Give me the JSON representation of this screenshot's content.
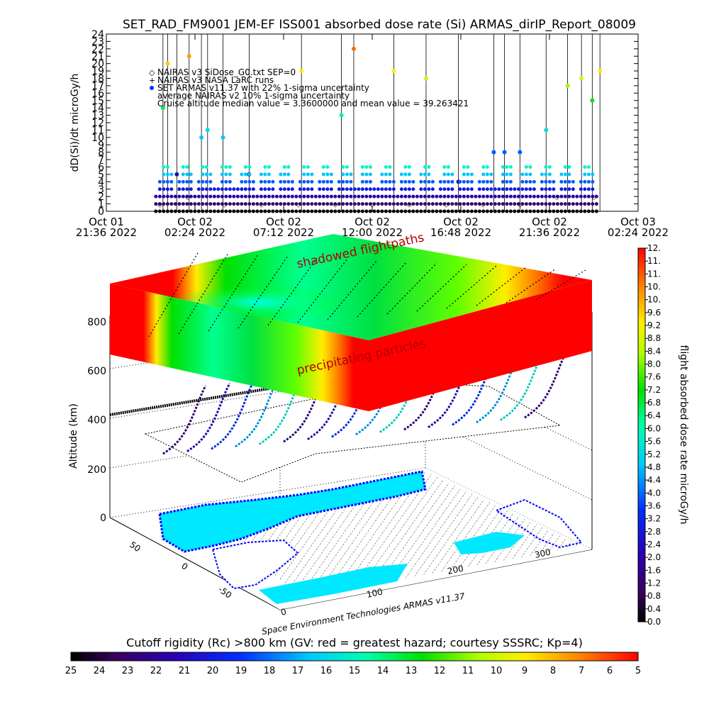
{
  "title": "SET_RAD_FM9001  JEM-EF ISS001 absorbed dose rate (Si) ARMAS_dirIP_Report_08009",
  "colors": {
    "background": "#ffffff",
    "ink": "#000000",
    "hazard_red": "#ff0000",
    "ocean": "#00ffff",
    "land": "#0000ff"
  },
  "top_plot": {
    "ylabel": "dD(Si)/dt microGy/h",
    "yticks": [
      "0",
      "1",
      "2",
      "3",
      "4",
      "5",
      "6",
      "7",
      "8",
      "9",
      "10",
      "11",
      "12",
      "13",
      "14",
      "15",
      "16",
      "17",
      "18",
      "19",
      "20",
      "21",
      "22",
      "23",
      "24"
    ],
    "xticks": [
      {
        "l1": "Oct 01",
        "l2": "21:36 2022"
      },
      {
        "l1": "Oct 02",
        "l2": "02:24 2022"
      },
      {
        "l1": "Oct 02",
        "l2": "07:12 2022"
      },
      {
        "l1": "Oct 02",
        "l2": "12:00 2022"
      },
      {
        "l1": "Oct 02",
        "l2": "16:48 2022"
      },
      {
        "l1": "Oct 02",
        "l2": "21:36 2022"
      },
      {
        "l1": "Oct 03",
        "l2": "02:24 2022"
      }
    ],
    "legend": [
      "NAIRAS v3 SiDose_G0.txt SEP=0",
      "NAIRAS v3 NASA LaRC runs",
      "SET ARMAS v11.37 with 22% 1-sigma uncertainty",
      "average NAIRAS v2 10% 1-sigma uncertainty",
      "Cruise altitude median value = 3.3600000 and mean value = 39.263421"
    ]
  },
  "chart_data": [
    {
      "type": "scatter",
      "title": "SET_RAD_FM9001  JEM-EF ISS001 absorbed dose rate (Si) ARMAS_dirIP_Report_08009",
      "ylabel": "dD(Si)/dt microGy/h",
      "ylim": [
        0,
        24
      ],
      "xlim": [
        "2022-10-01 21:36",
        "2022-10-03 02:24"
      ],
      "grid": false,
      "legend_position": "top-left",
      "series": [
        {
          "name": "SET ARMAS v11.37 with 22% 1-sigma uncertainty",
          "x": [
            "2022-10-02 00:40",
            "2022-10-02 00:55",
            "2022-10-02 01:25",
            "2022-10-02 02:05",
            "2022-10-02 02:45",
            "2022-10-02 03:05",
            "2022-10-02 03:55",
            "2022-10-02 05:20",
            "2022-10-02 08:10",
            "2022-10-02 10:20",
            "2022-10-02 11:00",
            "2022-10-02 13:10",
            "2022-10-02 14:55",
            "2022-10-02 16:40",
            "2022-10-02 18:35",
            "2022-10-02 19:10",
            "2022-10-02 20:00",
            "2022-10-02 21:25",
            "2022-10-02 22:35",
            "2022-10-02 23:20",
            "2022-10-02 23:55",
            "2022-10-03 00:20"
          ],
          "y": [
            14,
            20,
            5,
            21,
            10,
            11,
            10,
            5,
            19,
            13,
            22,
            19,
            18,
            4,
            8,
            8,
            8,
            11,
            17,
            18,
            15,
            19
          ]
        },
        {
          "name": "NAIRAS v3 SiDose_G0.txt SEP=0",
          "x": [
            "2022-10-02 00:30",
            "2022-10-02 02:00",
            "2022-10-02 04:00",
            "2022-10-02 06:00",
            "2022-10-02 08:00",
            "2022-10-02 10:00",
            "2022-10-02 12:00",
            "2022-10-02 14:00",
            "2022-10-02 16:00",
            "2022-10-02 18:00",
            "2022-10-02 20:00",
            "2022-10-02 22:00",
            "2022-10-03 00:00"
          ],
          "y": [
            1,
            2,
            1,
            1,
            1,
            1,
            1,
            1,
            1,
            1,
            1,
            2,
            2
          ]
        }
      ]
    },
    {
      "type": "heatmap",
      "xlabel": "",
      "ylabel": "Altitude (km)",
      "zlabel": "",
      "altitude_ticks": [
        0,
        200,
        400,
        600,
        800
      ],
      "latitude_ticks": [
        50,
        0,
        -50
      ],
      "longitude_ticks": [
        0,
        100,
        200,
        300
      ],
      "annotations": [
        "shadowed flightpaths",
        "precipitating particles"
      ],
      "footer": "Space Environment Technologies ARMAS v11.37"
    },
    {
      "type": "heatmap",
      "name": "flight absorbed dose rate colorbar",
      "label": "flight absorbed dose rate microGy/h",
      "ticks": [
        "0.0",
        "0.4",
        "0.8",
        "1.2",
        "1.6",
        "2.0",
        "2.4",
        "2.8",
        "3.2",
        "3.6",
        "4.0",
        "4.4",
        "4.8",
        "5.2",
        "5.6",
        "6.0",
        "6.4",
        "6.8",
        "7.2",
        "7.6",
        "8.0",
        "8.4",
        "8.8",
        "9.2",
        "9.6",
        "10.",
        "10.",
        "11.",
        "11.",
        "12."
      ],
      "range": [
        0,
        12
      ]
    },
    {
      "type": "heatmap",
      "name": "cutoff rigidity colorbar",
      "label": "Cutoff rigidity (Rc) >800 km (GV: red = greatest hazard; courtesy SSSRC; Kp=4)",
      "ticks": [
        "25",
        "24",
        "23",
        "22",
        "21",
        "20",
        "19",
        "18",
        "17",
        "16",
        "15",
        "14",
        "13",
        "12",
        "11",
        "10",
        "9",
        "8",
        "7",
        "6",
        "5"
      ],
      "range": [
        25,
        5
      ]
    }
  ],
  "scene": {
    "alt_label": "Altitude (km)",
    "alt_ticks": [
      "0",
      "200",
      "400",
      "600",
      "800"
    ],
    "lat_ticks": [
      "50",
      "0",
      "-50"
    ],
    "lon_ticks": [
      "0",
      "100",
      "200",
      "300"
    ],
    "annotation_top": "shadowed flightpaths",
    "annotation_mid": "precipitating particles",
    "footer": "Space Environment Technologies ARMAS v11.37"
  },
  "right_colorbar": {
    "label": "flight absorbed dose rate microGy/h",
    "ticks": [
      "0.0",
      "0.4",
      "0.8",
      "1.2",
      "1.6",
      "2.0",
      "2.4",
      "2.8",
      "3.2",
      "3.6",
      "4.0",
      "4.4",
      "4.8",
      "5.2",
      "5.6",
      "6.0",
      "6.4",
      "6.8",
      "7.2",
      "7.6",
      "8.0",
      "8.4",
      "8.8",
      "9.2",
      "9.6",
      "10.",
      "10.",
      "11.",
      "11.",
      "12."
    ]
  },
  "bottom_colorbar": {
    "label": "Cutoff rigidity (Rc) >800 km (GV: red = greatest hazard; courtesy SSSRC; Kp=4)",
    "ticks": [
      "25",
      "24",
      "23",
      "22",
      "21",
      "20",
      "19",
      "18",
      "17",
      "16",
      "15",
      "14",
      "13",
      "12",
      "11",
      "10",
      "9",
      "8",
      "7",
      "6",
      "5"
    ]
  }
}
